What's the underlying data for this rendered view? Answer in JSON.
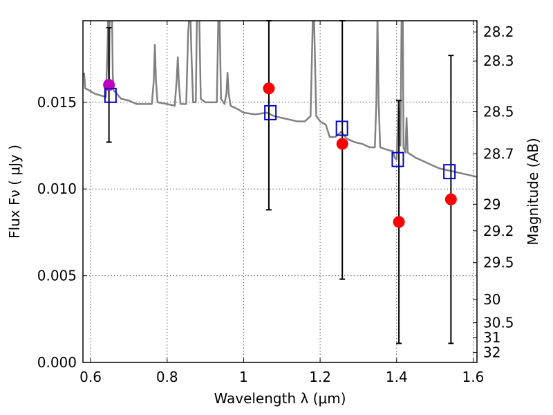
{
  "chart_data": {
    "type": "scatter",
    "xlabel": "Wavelength  λ (μm)",
    "ylabel": "Flux  Fν  ( μJy )",
    "y2label": "Magnitude (AB)",
    "xlim": [
      0.58,
      1.61
    ],
    "ylim": [
      0.0,
      0.0197
    ],
    "grid": true,
    "xticks": [
      0.6,
      0.8,
      1.0,
      1.2,
      1.4,
      1.6
    ],
    "xtick_labels": [
      "0.6",
      "0.8",
      "1",
      "1.2",
      "1.4",
      "1.6"
    ],
    "yticks": [
      0.0,
      0.005,
      0.01,
      0.015
    ],
    "ytick_labels": [
      "0.000",
      "0.005",
      "0.010",
      "0.015"
    ],
    "magnitude_ticks": [
      {
        "mag": 28.2,
        "label": "28.2"
      },
      {
        "mag": 28.3,
        "label": "28.3"
      },
      {
        "mag": 28.5,
        "label": "28.5"
      },
      {
        "mag": 28.7,
        "label": "28.7"
      },
      {
        "mag": 29.0,
        "label": "29"
      },
      {
        "mag": 29.2,
        "label": "29.2"
      },
      {
        "mag": 29.5,
        "label": "29.5"
      },
      {
        "mag": 30.0,
        "label": "30"
      },
      {
        "mag": 30.5,
        "label": "30.5"
      },
      {
        "mag": 31.0,
        "label": "31"
      },
      {
        "mag": 32.0,
        "label": "32"
      }
    ],
    "ab_zero_point_uJy": 3631000000,
    "observed": [
      {
        "x": 0.648,
        "y": 0.016,
        "yerr_low": 0.0127,
        "yerr_high": 0.0193,
        "color": "#bf00bf"
      },
      {
        "x": 1.066,
        "y": 0.0158,
        "yerr_low": 0.0088,
        "yerr_high": 0.0197,
        "color": "#ff0000"
      },
      {
        "x": 1.258,
        "y": 0.0126,
        "yerr_low": 0.0048,
        "yerr_high": 0.0197,
        "color": "#ff0000"
      },
      {
        "x": 1.406,
        "y": 0.0081,
        "yerr_low": 0.0011,
        "yerr_high": 0.0151,
        "color": "#ff0000"
      },
      {
        "x": 1.542,
        "y": 0.0094,
        "yerr_low": 0.0011,
        "yerr_high": 0.0177,
        "color": "#ff0000"
      }
    ],
    "model_photometry": [
      {
        "x": 0.652,
        "y": 0.0154
      },
      {
        "x": 1.07,
        "y": 0.0144
      },
      {
        "x": 1.257,
        "y": 0.0135
      },
      {
        "x": 1.403,
        "y": 0.0117
      },
      {
        "x": 1.538,
        "y": 0.011
      }
    ],
    "model_spectrum": [
      [
        0.583,
        0.0167
      ],
      [
        0.586,
        0.0158
      ],
      [
        0.595,
        0.0157
      ],
      [
        0.61,
        0.0155
      ],
      [
        0.625,
        0.0154
      ],
      [
        0.64,
        0.0153
      ],
      [
        0.644,
        0.018
      ],
      [
        0.646,
        0.02
      ],
      [
        0.648,
        0.016
      ],
      [
        0.65,
        0.02
      ],
      [
        0.652,
        0.02
      ],
      [
        0.654,
        0.02
      ],
      [
        0.656,
        0.02
      ],
      [
        0.658,
        0.0165
      ],
      [
        0.66,
        0.0157
      ],
      [
        0.68,
        0.0152
      ],
      [
        0.7,
        0.0151
      ],
      [
        0.72,
        0.0149
      ],
      [
        0.74,
        0.0149
      ],
      [
        0.76,
        0.0149
      ],
      [
        0.765,
        0.0162
      ],
      [
        0.768,
        0.0183
      ],
      [
        0.771,
        0.0162
      ],
      [
        0.775,
        0.015
      ],
      [
        0.8,
        0.0149
      ],
      [
        0.82,
        0.0148
      ],
      [
        0.825,
        0.0163
      ],
      [
        0.828,
        0.0176
      ],
      [
        0.831,
        0.016
      ],
      [
        0.835,
        0.0149
      ],
      [
        0.85,
        0.0149
      ],
      [
        0.855,
        0.019
      ],
      [
        0.858,
        0.02
      ],
      [
        0.861,
        0.02
      ],
      [
        0.864,
        0.0175
      ],
      [
        0.868,
        0.015
      ],
      [
        0.875,
        0.015
      ],
      [
        0.878,
        0.02
      ],
      [
        0.881,
        0.02
      ],
      [
        0.884,
        0.02
      ],
      [
        0.888,
        0.0152
      ],
      [
        0.9,
        0.015
      ],
      [
        0.92,
        0.015
      ],
      [
        0.93,
        0.015
      ],
      [
        0.934,
        0.02
      ],
      [
        0.937,
        0.02
      ],
      [
        0.941,
        0.0152
      ],
      [
        0.95,
        0.0149
      ],
      [
        0.955,
        0.0155
      ],
      [
        0.958,
        0.0167
      ],
      [
        0.961,
        0.0155
      ],
      [
        0.966,
        0.0148
      ],
      [
        0.985,
        0.0146
      ],
      [
        1.0,
        0.0144
      ],
      [
        1.03,
        0.0143
      ],
      [
        1.06,
        0.0144
      ],
      [
        1.08,
        0.0142
      ],
      [
        1.1,
        0.0141
      ],
      [
        1.12,
        0.014
      ],
      [
        1.14,
        0.0139
      ],
      [
        1.16,
        0.0139
      ],
      [
        1.175,
        0.0142
      ],
      [
        1.178,
        0.017
      ],
      [
        1.181,
        0.02
      ],
      [
        1.184,
        0.02
      ],
      [
        1.187,
        0.017
      ],
      [
        1.19,
        0.0142
      ],
      [
        1.2,
        0.0139
      ],
      [
        1.215,
        0.0137
      ],
      [
        1.225,
        0.013
      ],
      [
        1.24,
        0.013
      ],
      [
        1.255,
        0.0133
      ],
      [
        1.27,
        0.0129
      ],
      [
        1.29,
        0.0127
      ],
      [
        1.31,
        0.0126
      ],
      [
        1.33,
        0.0124
      ],
      [
        1.343,
        0.0124
      ],
      [
        1.347,
        0.015
      ],
      [
        1.35,
        0.02
      ],
      [
        1.353,
        0.015
      ],
      [
        1.357,
        0.0124
      ],
      [
        1.37,
        0.0123
      ],
      [
        1.385,
        0.0122
      ],
      [
        1.39,
        0.0122
      ],
      [
        1.395,
        0.0118
      ],
      [
        1.4,
        0.0117
      ],
      [
        1.405,
        0.015
      ],
      [
        1.41,
        0.0125
      ],
      [
        1.413,
        0.02
      ],
      [
        1.416,
        0.02
      ],
      [
        1.418,
        0.0124
      ],
      [
        1.423,
        0.0121
      ],
      [
        1.426,
        0.0141
      ],
      [
        1.429,
        0.0121
      ],
      [
        1.45,
        0.0118
      ],
      [
        1.47,
        0.0116
      ],
      [
        1.49,
        0.0114
      ],
      [
        1.51,
        0.0112
      ],
      [
        1.53,
        0.0111
      ],
      [
        1.55,
        0.011
      ],
      [
        1.57,
        0.0109
      ],
      [
        1.59,
        0.0108
      ],
      [
        1.61,
        0.0107
      ]
    ],
    "colors": {
      "spectrum": "#808080",
      "model_marker": "#0000cc",
      "errorbar": "#000000",
      "grid": "#555555"
    }
  }
}
